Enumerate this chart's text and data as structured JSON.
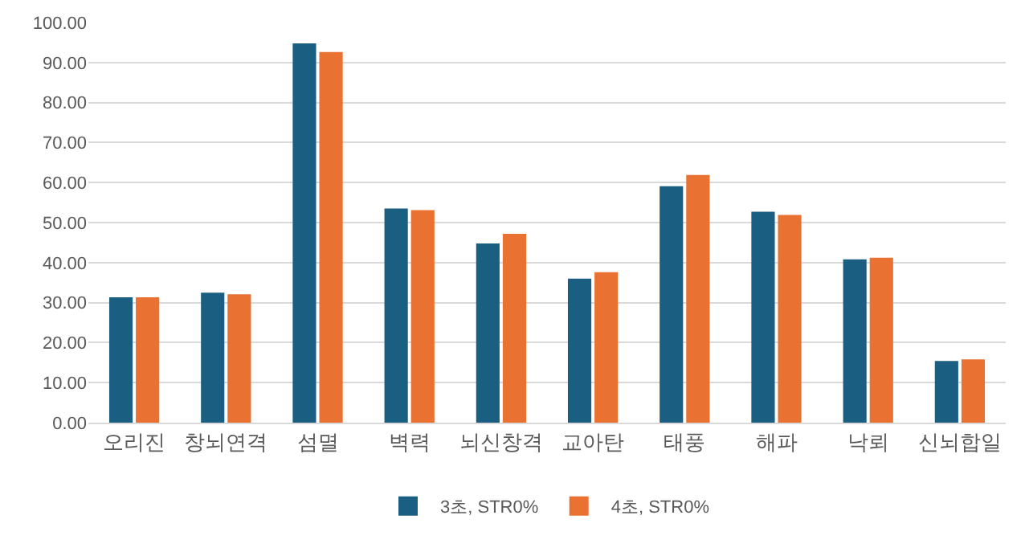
{
  "chart_data": {
    "type": "bar",
    "categories": [
      "오리진",
      "창뇌연격",
      "섬멸",
      "벽력",
      "뇌신창격",
      "교아탄",
      "태풍",
      "해파",
      "낙뢰",
      "신뇌합일"
    ],
    "series": [
      {
        "name": "3초, STR0%",
        "color": "#1a5f82",
        "values": [
          31.3,
          32.5,
          94.8,
          53.5,
          44.8,
          36.0,
          59.1,
          52.7,
          40.8,
          15.4
        ]
      },
      {
        "name": "4초, STR0%",
        "color": "#e97132",
        "values": [
          31.3,
          32.1,
          92.6,
          53.1,
          47.2,
          37.6,
          61.9,
          51.9,
          41.2,
          15.8
        ]
      }
    ],
    "ylim": [
      0,
      100
    ],
    "yticks": [
      {
        "value": 0,
        "label": "0.00"
      },
      {
        "value": 10,
        "label": "10.00"
      },
      {
        "value": 20,
        "label": "20.00"
      },
      {
        "value": 30,
        "label": "30.00"
      },
      {
        "value": 40,
        "label": "40.00"
      },
      {
        "value": 50,
        "label": "50.00"
      },
      {
        "value": 60,
        "label": "60.00"
      },
      {
        "value": 70,
        "label": "70.00"
      },
      {
        "value": 80,
        "label": "80.00"
      },
      {
        "value": 90,
        "label": "90.00"
      },
      {
        "value": 100,
        "label": "100.00"
      }
    ],
    "grid": "y",
    "legend": "bottom"
  }
}
